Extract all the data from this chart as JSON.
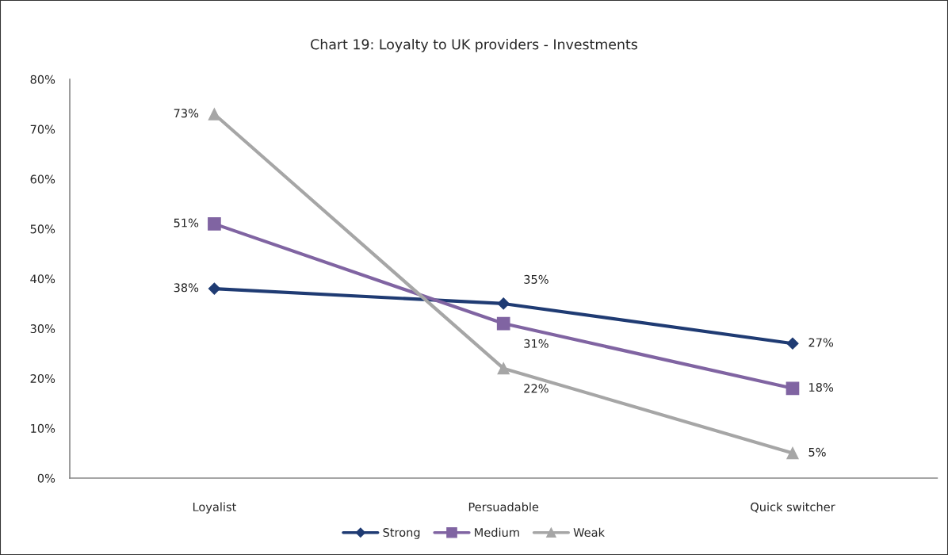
{
  "chart_data": {
    "type": "line",
    "title": "Chart 19: Loyalty to UK providers - Investments",
    "categories": [
      "Loyalist",
      "Persuadable",
      "Quick switcher"
    ],
    "series": [
      {
        "name": "Strong",
        "color": "#1f3b73",
        "marker": "diamond",
        "values": [
          38,
          35,
          27
        ],
        "value_labels": [
          "38%",
          "35%",
          "27%"
        ]
      },
      {
        "name": "Medium",
        "color": "#8064a2",
        "marker": "square",
        "values": [
          51,
          31,
          18
        ],
        "value_labels": [
          "51%",
          "31%",
          "18%"
        ]
      },
      {
        "name": "Weak",
        "color": "#a6a6a6",
        "marker": "triangle",
        "values": [
          73,
          22,
          5
        ],
        "value_labels": [
          "73%",
          "22%",
          "5%"
        ]
      }
    ],
    "ylim": [
      0,
      80
    ],
    "yticks": [
      {
        "value": 0,
        "label": "0%"
      },
      {
        "value": 10,
        "label": "10%"
      },
      {
        "value": 20,
        "label": "20%"
      },
      {
        "value": 30,
        "label": "30%"
      },
      {
        "value": 40,
        "label": "40%"
      },
      {
        "value": 50,
        "label": "50%"
      },
      {
        "value": 60,
        "label": "60%"
      },
      {
        "value": 70,
        "label": "70%"
      },
      {
        "value": 80,
        "label": "80%"
      }
    ],
    "grid": false,
    "legend": "bottom",
    "line_style": "solid"
  }
}
